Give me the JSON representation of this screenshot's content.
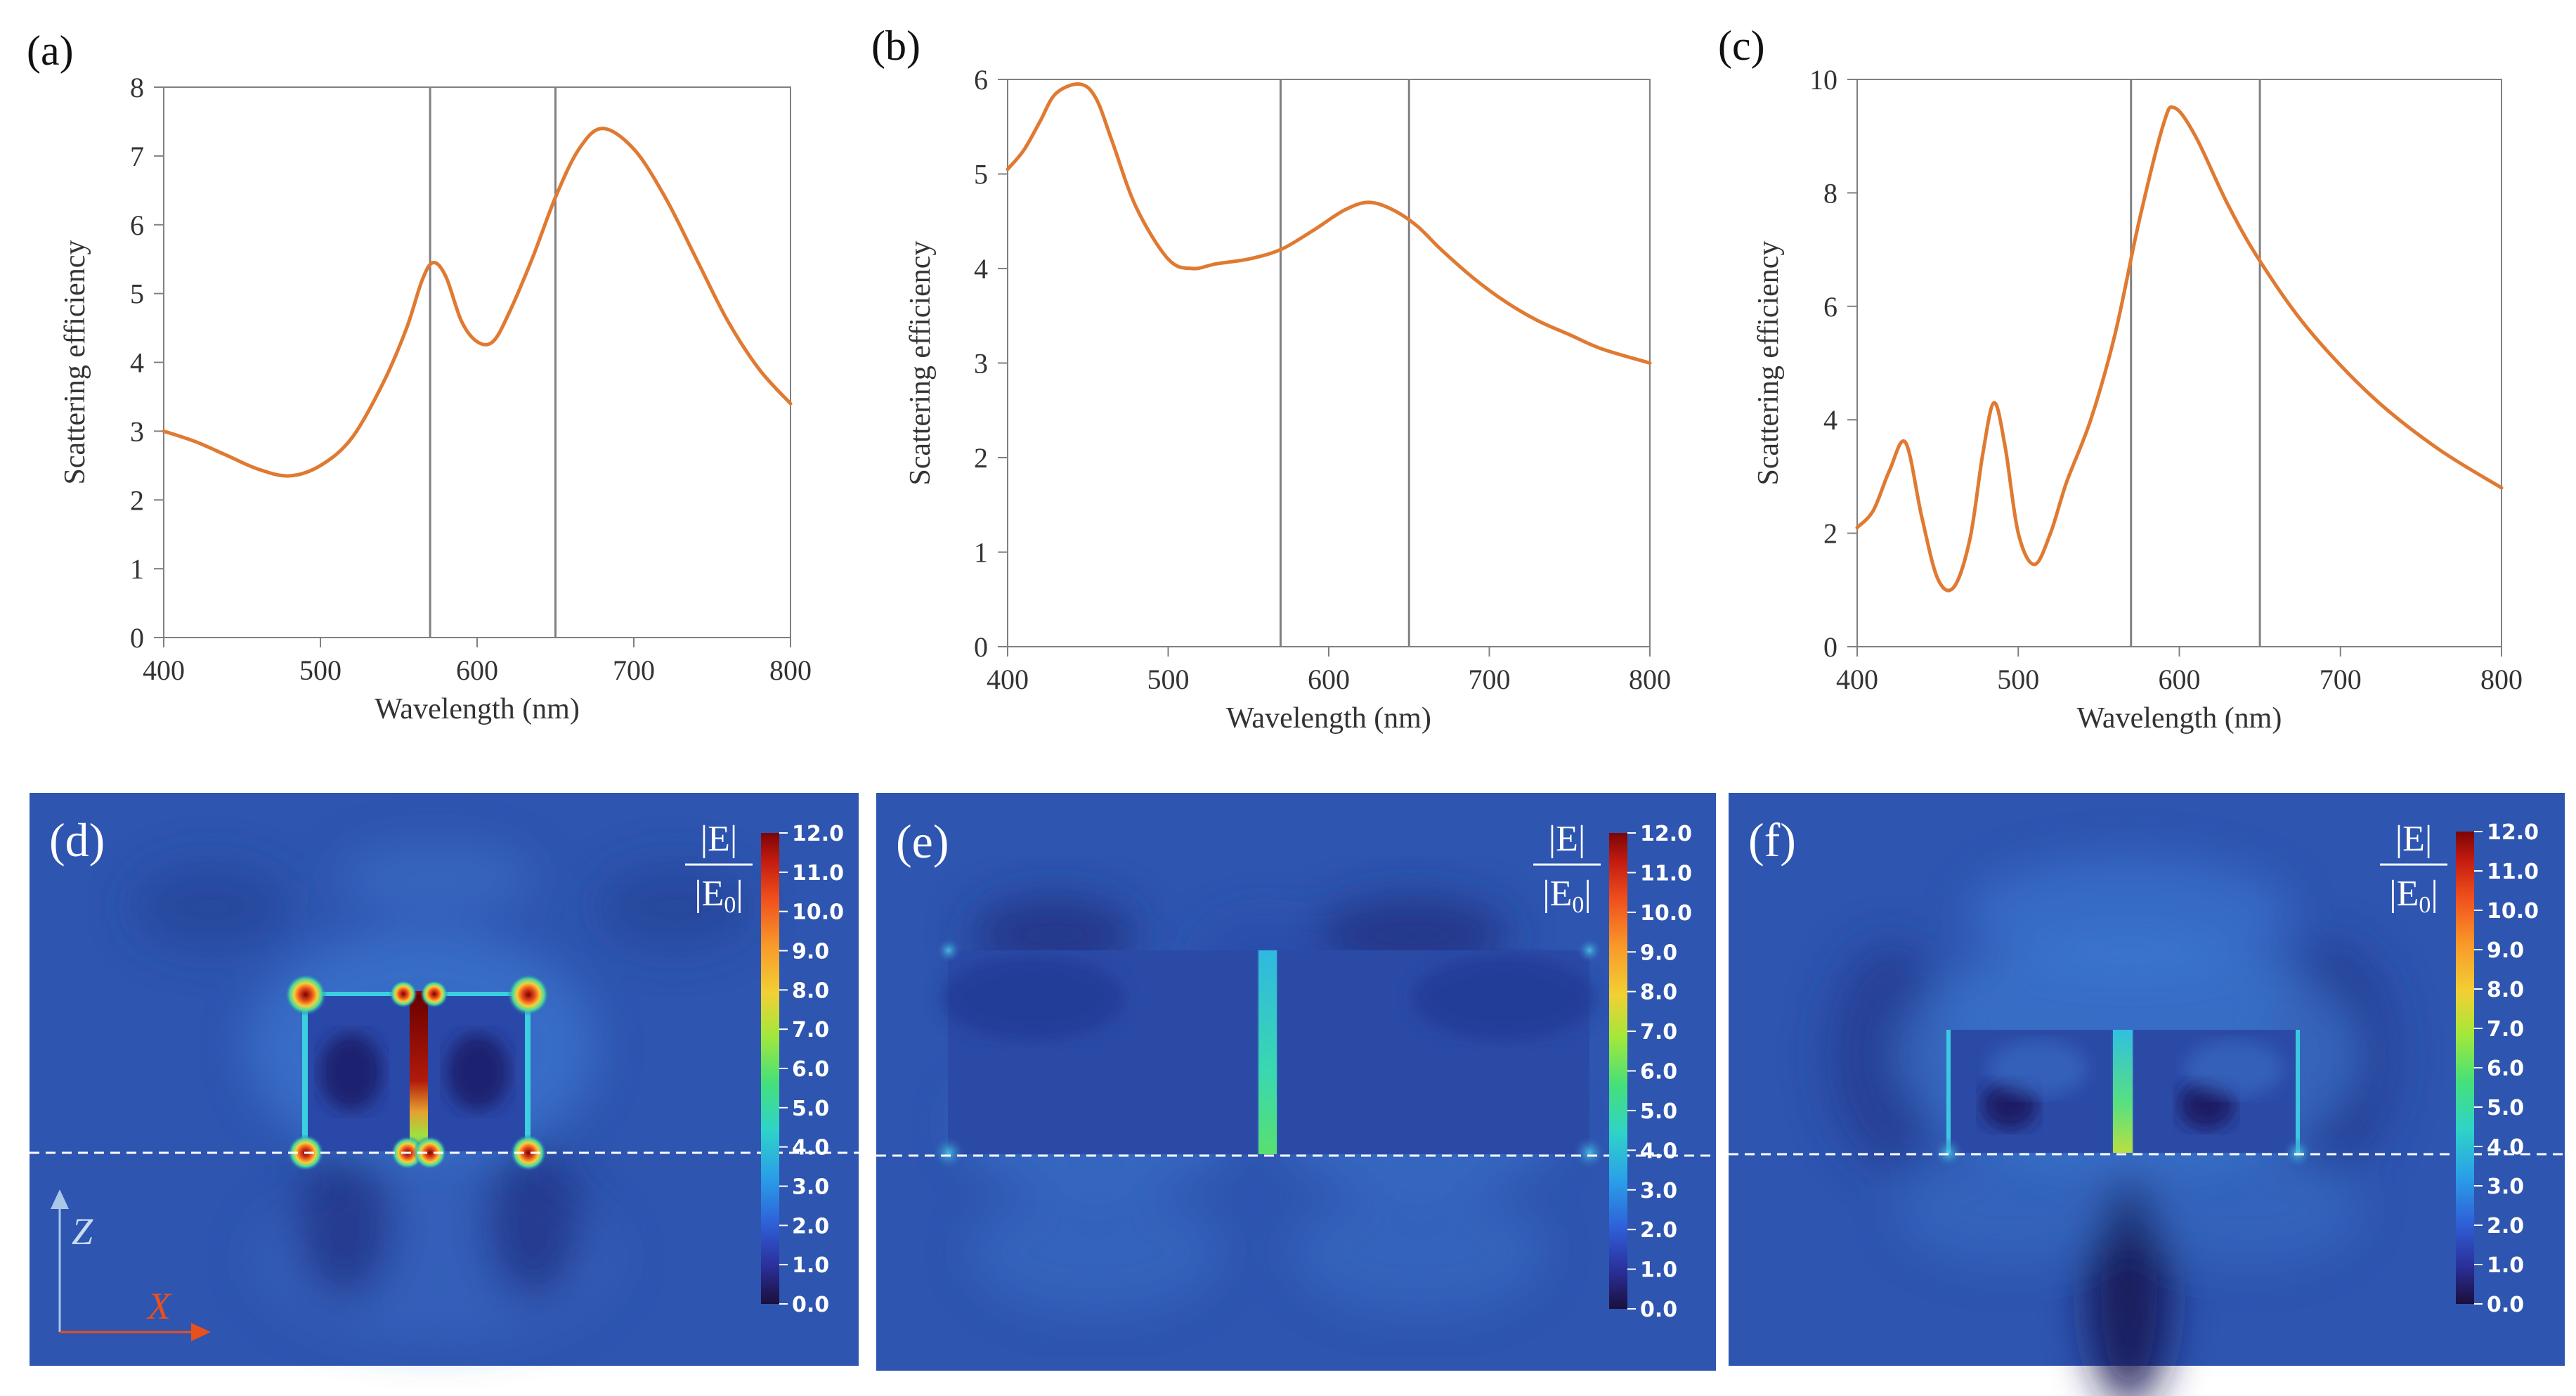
{
  "chart_data": [
    {
      "panel": "(a)",
      "type": "line",
      "xlabel": "Wavelength (nm)",
      "ylabel": "Scattering efficiency",
      "xlim": [
        400,
        800
      ],
      "ylim": [
        0,
        8
      ],
      "xticks": [
        400,
        500,
        600,
        700,
        800
      ],
      "yticks": [
        0,
        1,
        2,
        3,
        4,
        5,
        6,
        7,
        8
      ],
      "vlines": [
        570,
        650
      ],
      "line_color": "#e07a32",
      "series": [
        {
          "name": "Scattering efficiency",
          "x": [
            400,
            420,
            440,
            460,
            480,
            500,
            520,
            540,
            555,
            565,
            572,
            580,
            590,
            600,
            610,
            620,
            635,
            650,
            665,
            680,
            700,
            720,
            740,
            760,
            780,
            800
          ],
          "y": [
            3.0,
            2.85,
            2.65,
            2.45,
            2.35,
            2.5,
            2.9,
            3.7,
            4.5,
            5.2,
            5.45,
            5.25,
            4.6,
            4.3,
            4.3,
            4.7,
            5.5,
            6.4,
            7.1,
            7.4,
            7.1,
            6.4,
            5.5,
            4.6,
            3.9,
            3.4
          ]
        }
      ]
    },
    {
      "panel": "(b)",
      "type": "line",
      "xlabel": "Wavelength (nm)",
      "ylabel": "Scattering efficiency",
      "xlim": [
        400,
        800
      ],
      "ylim": [
        0,
        6
      ],
      "xticks": [
        400,
        500,
        600,
        700,
        800
      ],
      "yticks": [
        0,
        1,
        2,
        3,
        4,
        5,
        6
      ],
      "vlines": [
        570,
        650
      ],
      "line_color": "#e07a32",
      "series": [
        {
          "name": "Scattering efficiency",
          "x": [
            400,
            410,
            420,
            430,
            445,
            455,
            465,
            480,
            500,
            515,
            530,
            550,
            570,
            590,
            610,
            625,
            640,
            655,
            670,
            690,
            710,
            730,
            750,
            770,
            800
          ],
          "y": [
            5.05,
            5.25,
            5.55,
            5.85,
            5.95,
            5.8,
            5.35,
            4.65,
            4.1,
            4.0,
            4.05,
            4.1,
            4.2,
            4.4,
            4.62,
            4.7,
            4.62,
            4.45,
            4.2,
            3.9,
            3.65,
            3.45,
            3.3,
            3.15,
            3.0
          ]
        }
      ]
    },
    {
      "panel": "(c)",
      "type": "line",
      "xlabel": "Wavelength (nm)",
      "ylabel": "Scattering efficiency",
      "xlim": [
        400,
        800
      ],
      "ylim": [
        0,
        10
      ],
      "xticks": [
        400,
        500,
        600,
        700,
        800
      ],
      "yticks": [
        0,
        2,
        4,
        6,
        8,
        10
      ],
      "vlines": [
        570,
        650
      ],
      "line_color": "#e07a32",
      "series": [
        {
          "name": "Scattering efficiency",
          "x": [
            400,
            410,
            420,
            430,
            440,
            450,
            460,
            470,
            478,
            485,
            492,
            500,
            510,
            520,
            530,
            545,
            560,
            575,
            590,
            597,
            610,
            630,
            650,
            680,
            720,
            760,
            800
          ],
          "y": [
            2.1,
            2.4,
            3.1,
            3.6,
            2.3,
            1.2,
            1.05,
            1.9,
            3.4,
            4.3,
            3.5,
            2.0,
            1.45,
            2.0,
            2.9,
            4.0,
            5.5,
            7.5,
            9.2,
            9.5,
            9.0,
            7.8,
            6.8,
            5.6,
            4.4,
            3.5,
            2.8
          ]
        }
      ]
    },
    {
      "panel": "(d)",
      "type": "heatmap",
      "colorbar_title_top": "|E|",
      "colorbar_title_bottom": "|E",
      "colorbar_title_sub": "0",
      "colorbar_title_end": "|",
      "colorbar_range": [
        0.0,
        12.0
      ],
      "colorbar_ticks": [
        "12.0",
        "11.0",
        "10.0",
        "9.0",
        "8.0",
        "7.0",
        "6.0",
        "5.0",
        "4.0",
        "3.0",
        "2.0",
        "1.0",
        "0.0"
      ],
      "axis_labels": {
        "z": "Z",
        "x": "X"
      }
    },
    {
      "panel": "(e)",
      "type": "heatmap",
      "colorbar_title_top": "|E|",
      "colorbar_title_bottom": "|E",
      "colorbar_title_sub": "0",
      "colorbar_title_end": "|",
      "colorbar_range": [
        0.0,
        12.0
      ],
      "colorbar_ticks": [
        "12.0",
        "11.0",
        "10.0",
        "9.0",
        "8.0",
        "7.0",
        "6.0",
        "5.0",
        "4.0",
        "3.0",
        "2.0",
        "1.0",
        "0.0"
      ]
    },
    {
      "panel": "(f)",
      "type": "heatmap",
      "colorbar_title_top": "|E|",
      "colorbar_title_bottom": "|E",
      "colorbar_title_sub": "0",
      "colorbar_title_end": "|",
      "colorbar_range": [
        0.0,
        12.0
      ],
      "colorbar_ticks": [
        "12.0",
        "11.0",
        "10.0",
        "9.0",
        "8.0",
        "7.0",
        "6.0",
        "5.0",
        "4.0",
        "3.0",
        "2.0",
        "1.0",
        "0.0"
      ]
    }
  ],
  "colors": {
    "curve": "#e07a32",
    "vline": "#808080",
    "axis": "#808080",
    "field_bg": "#2e55b0",
    "hot": "#8a0000",
    "cyan": "#3fd0e0",
    "arrow_z": "#a9c8e8",
    "arrow_x": "#e8501e"
  }
}
